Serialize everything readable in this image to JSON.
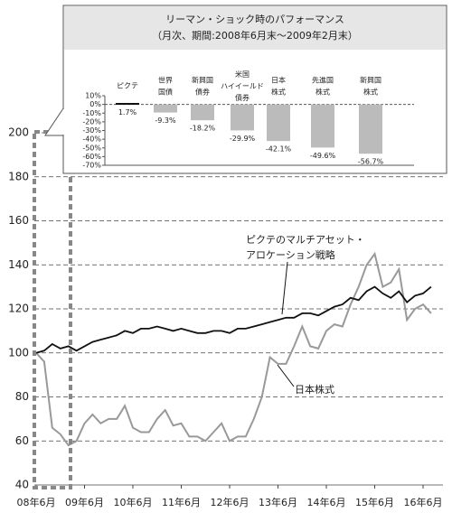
{
  "chart_data": [
    {
      "type": "bar",
      "title": "リーマン・ショック時のパフォーマンス",
      "subtitle": "（月次、期間:2008年6月末〜2009年2月末）",
      "categories": [
        "ピクテ",
        "世界\n国債",
        "新興国\n債券",
        "米国\nハイイールド\n債券",
        "日本\n株式",
        "先進国\n株式",
        "新興国\n株式"
      ],
      "values": [
        1.7,
        -9.3,
        -18.2,
        -29.9,
        -42.1,
        -49.6,
        -56.7
      ],
      "value_labels": [
        "1.7%",
        "-9.3%",
        "-18.2%",
        "-29.9%",
        "-42.1%",
        "-49.6%",
        "-56.7%"
      ],
      "colors": [
        "#111111",
        "#bbbbbb",
        "#bbbbbb",
        "#bbbbbb",
        "#bbbbbb",
        "#bbbbbb",
        "#bbbbbb"
      ],
      "ylim": [
        -70,
        10
      ],
      "yticks": [
        {
          "value": 10,
          "label": "10%"
        },
        {
          "value": 0,
          "label": "0%"
        },
        {
          "value": -10,
          "label": "-10%"
        },
        {
          "value": -20,
          "label": "-20%"
        },
        {
          "value": -30,
          "label": "-30%"
        },
        {
          "value": -40,
          "label": "-40%"
        },
        {
          "value": -50,
          "label": "-50%"
        },
        {
          "value": -60,
          "label": "-60%"
        },
        {
          "value": -70,
          "label": "-70%"
        }
      ]
    },
    {
      "type": "line",
      "categories": [
        "08年6月",
        null,
        null,
        null,
        null,
        null,
        "09年6月",
        null,
        null,
        null,
        null,
        null,
        "10年6月",
        null,
        null,
        null,
        null,
        null,
        "11年6月",
        null,
        null,
        null,
        null,
        null,
        "12年6月",
        null,
        null,
        null,
        null,
        null,
        "13年6月",
        null,
        null,
        null,
        null,
        null,
        "14年6月",
        null,
        null,
        null,
        null,
        null,
        "15年6月",
        null,
        null,
        null,
        null,
        null,
        "16年6月",
        null
      ],
      "series": [
        {
          "name": "ピクテのマルチアセット・\nアロケーション戦略",
          "color": "#111111",
          "values": [
            100,
            101,
            104,
            102,
            103,
            101,
            103,
            105,
            106,
            107,
            108,
            110,
            109,
            111,
            111,
            112,
            111,
            110,
            111,
            110,
            109,
            109,
            110,
            110,
            109,
            111,
            111,
            112,
            113,
            114,
            115,
            116,
            116,
            118,
            118,
            117,
            119,
            121,
            122,
            125,
            124,
            128,
            130,
            127,
            125,
            128,
            123,
            126,
            127,
            130
          ]
        },
        {
          "name": "日本株式",
          "color": "#999999",
          "values": [
            100,
            96,
            66,
            63,
            58,
            60,
            68,
            72,
            68,
            70,
            70,
            76,
            66,
            64,
            64,
            70,
            74,
            67,
            68,
            62,
            62,
            60,
            64,
            68,
            60,
            62,
            62,
            70,
            80,
            98,
            95,
            95,
            103,
            112,
            103,
            102,
            110,
            113,
            112,
            122,
            130,
            140,
            145,
            130,
            132,
            138,
            115,
            120,
            122,
            118
          ]
        }
      ],
      "ylim": [
        40,
        200
      ],
      "yticks": [
        40,
        60,
        80,
        100,
        120,
        140,
        160,
        180,
        200
      ],
      "grid": true
    }
  ]
}
